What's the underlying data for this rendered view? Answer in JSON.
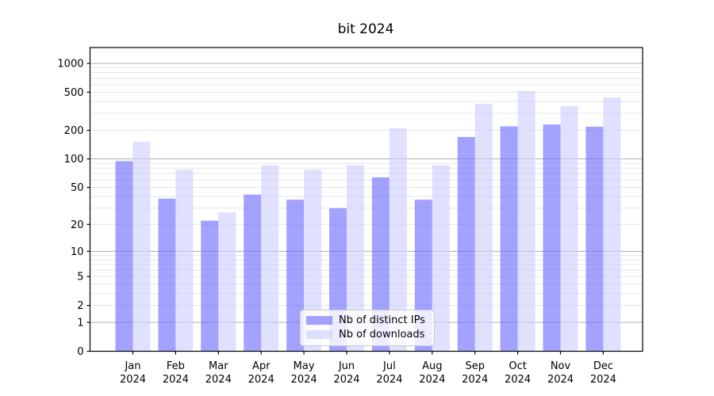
{
  "figure": {
    "title": "bit 2024"
  },
  "chart_data": {
    "type": "bar",
    "title": "bit 2024",
    "categories": [
      "Jan",
      "Feb",
      "Mar",
      "Apr",
      "May",
      "Jun",
      "Jul",
      "Aug",
      "Sep",
      "Oct",
      "Nov",
      "Dec"
    ],
    "category_year": "2024",
    "series": [
      {
        "name": "Nb of distinct IPs",
        "color": "rgba(102,102,255,0.6)",
        "values": [
          95,
          38,
          22,
          42,
          37,
          30,
          64,
          37,
          170,
          220,
          230,
          218
        ]
      },
      {
        "name": "Nb of downloads",
        "color": "rgba(204,204,255,0.6)",
        "values": [
          152,
          77,
          27,
          86,
          77,
          86,
          210,
          86,
          378,
          515,
          358,
          440
        ]
      }
    ],
    "yscale": "log1p",
    "yticks": [
      0,
      1,
      2,
      5,
      10,
      20,
      50,
      100,
      200,
      500,
      1000
    ],
    "ylim": [
      0,
      1460
    ],
    "grid": true,
    "legend_position": "lower center"
  },
  "colors": {
    "bar_distinct_ips": "rgba(102,102,255,0.6)",
    "bar_downloads": "rgba(204,204,255,0.6)",
    "grid_major": "#b0b0b0",
    "grid_minor": "#e4e4e4",
    "spine": "#000000",
    "text": "#000000",
    "legend_border": "#cccccc"
  }
}
